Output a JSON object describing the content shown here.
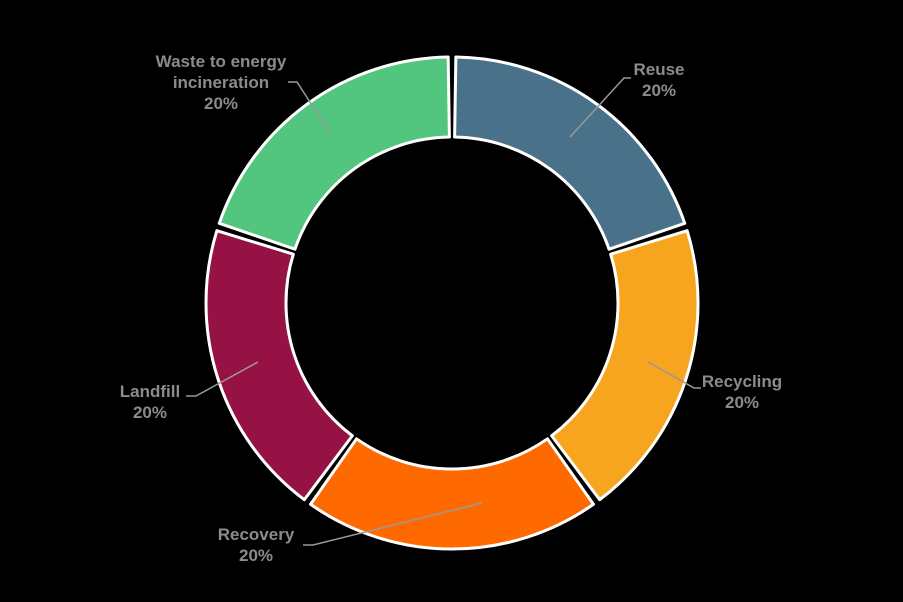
{
  "chart_data": {
    "type": "pie",
    "subtype": "donut",
    "title": "",
    "labels": [
      "Reuse",
      "Recycling",
      "Recovery",
      "Landfill",
      "Waste to energy incineration"
    ],
    "values": [
      20,
      20,
      20,
      20,
      20
    ],
    "percent_labels": [
      "20%",
      "20%",
      "20%",
      "20%",
      "20%"
    ],
    "colors": [
      "#4A718A",
      "#F7A41F",
      "#FE6A00",
      "#971244",
      "#52C57E"
    ],
    "hole_ratio": 0.67,
    "rotation": "first slice starts at 12 o'clock",
    "direction": "clockwise",
    "slice_border_color": "#FFFFFF",
    "label_text_color": "#8B8B8B",
    "leader_line_color": "#999999",
    "background_color": "#000000",
    "legend": "none"
  }
}
